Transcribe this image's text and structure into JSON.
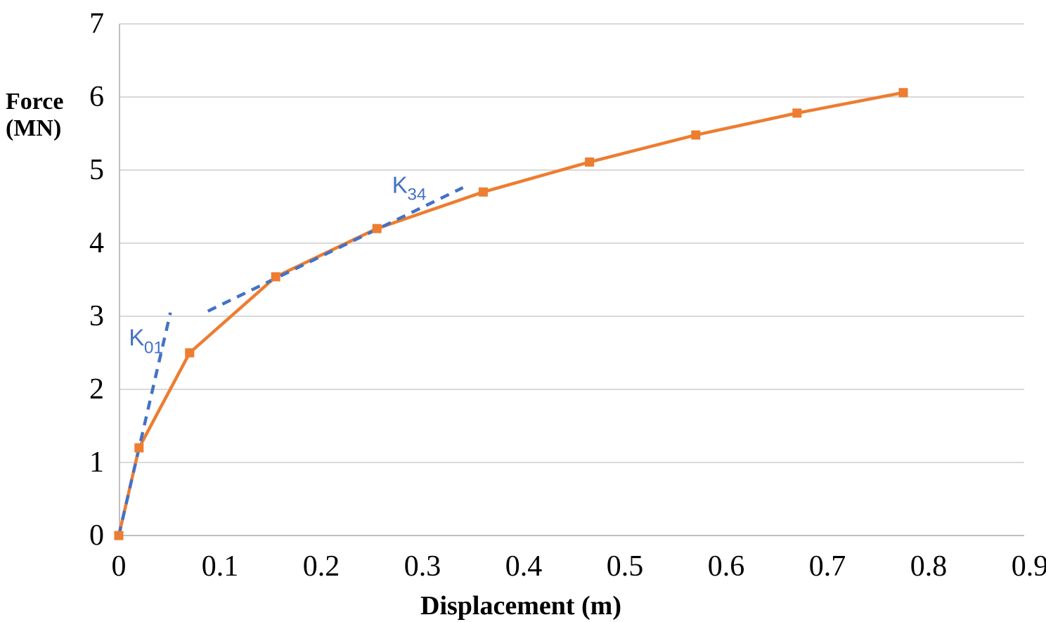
{
  "chart_data": {
    "type": "line",
    "title": "",
    "xlabel": "Displacement (m)",
    "ylabel": "Force\n(MN)",
    "xlim": [
      0,
      0.9
    ],
    "ylim": [
      0,
      7
    ],
    "x_ticks": [
      "0",
      "0.1",
      "0.2",
      "0.3",
      "0.4",
      "0.5",
      "0.6",
      "0.7",
      "0.8",
      "0.9"
    ],
    "x_tick_values": [
      0,
      0.1,
      0.2,
      0.3,
      0.4,
      0.5,
      0.6,
      0.7,
      0.8,
      0.9
    ],
    "y_ticks": [
      "0",
      "1",
      "2",
      "3",
      "4",
      "5",
      "6",
      "7"
    ],
    "y_tick_values": [
      0,
      1,
      2,
      3,
      4,
      5,
      6,
      7
    ],
    "grid": "horizontal",
    "legend": "none",
    "colors": {
      "series_orange": "#ED7D31",
      "stiffness_blue": "#4472C4",
      "gridline": "#D9D9D9",
      "axis_line": "#BFBFBF",
      "text": "#000000",
      "background": "#FFFFFF"
    },
    "series": [
      {
        "name": "force-displacement-curve",
        "color": "#ED7D31",
        "style": "solid",
        "marker": "square",
        "points": [
          [
            0,
            0
          ],
          [
            0.02,
            1.2
          ],
          [
            0.07,
            2.5
          ],
          [
            0.155,
            3.54
          ],
          [
            0.255,
            4.2
          ],
          [
            0.36,
            4.7
          ],
          [
            0.465,
            5.11
          ],
          [
            0.57,
            5.48
          ],
          [
            0.67,
            5.78
          ],
          [
            0.775,
            6.06
          ]
        ]
      },
      {
        "name": "K01-secant-stiffness-line",
        "color": "#4472C4",
        "style": "dashed",
        "marker": "none",
        "points": [
          [
            0,
            0
          ],
          [
            0.051,
            3.05
          ]
        ]
      },
      {
        "name": "K34-secant-stiffness-line",
        "color": "#4472C4",
        "style": "dashed",
        "marker": "none",
        "points": [
          [
            0.088,
            3.07
          ],
          [
            0.34,
            4.76
          ]
        ]
      }
    ],
    "annotations": [
      {
        "main": "K",
        "sub": "01",
        "x": 0.01,
        "y": 2.67,
        "color": "#4472C4"
      },
      {
        "main": "K",
        "sub": "34",
        "x": 0.27,
        "y": 4.76,
        "color": "#4472C4"
      }
    ]
  }
}
